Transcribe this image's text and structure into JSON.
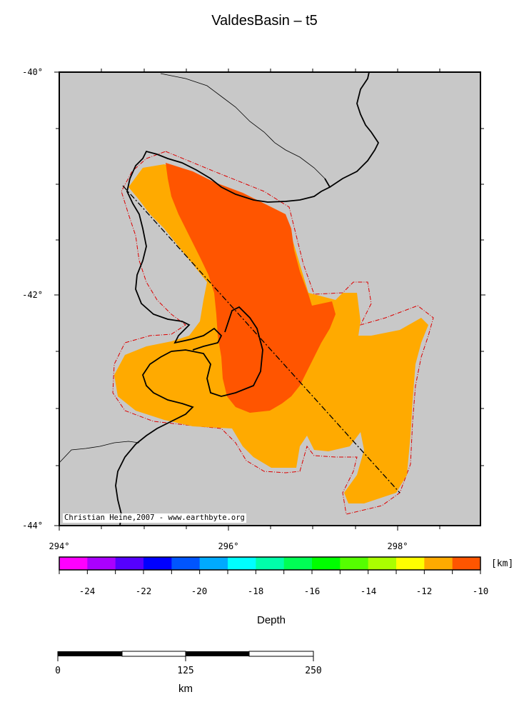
{
  "title": "ValdesBasin – t5",
  "credit": "Christian Heine,2007 - www.earthbyte.org",
  "map": {
    "lat_labels": [
      "-40°",
      "-42°",
      "-44°"
    ],
    "lon_labels": [
      "294°",
      "296°",
      "298°"
    ],
    "land_color": "#c8c8c8",
    "deep_fill": "#ff5500",
    "shallow_fill": "#ffaa00"
  },
  "colorbar": {
    "unit": "[km]",
    "ticks": [
      "-24",
      "-22",
      "-20",
      "-18",
      "-16",
      "-14",
      "-12",
      "-10"
    ],
    "colors": [
      "#ff00ff",
      "#aa00ff",
      "#5500ff",
      "#0000ff",
      "#0055ff",
      "#00aaff",
      "#00ffff",
      "#00ffaa",
      "#00ff55",
      "#00ff00",
      "#55ff00",
      "#aaff00",
      "#ffff00",
      "#ffaa00",
      "#ff5500"
    ],
    "title": "Depth"
  },
  "scalebar": {
    "labels": [
      "0",
      "125",
      "250"
    ],
    "unit": "km"
  }
}
